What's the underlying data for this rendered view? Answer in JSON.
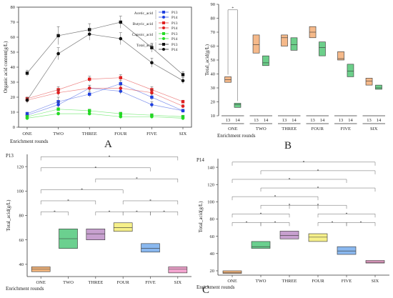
{
  "figure": {
    "panel_labels": [
      "A",
      "B",
      "C"
    ]
  },
  "chart_data": [
    {
      "id": "A",
      "type": "line",
      "categories": [
        "ONE",
        "TWO",
        "THREE",
        "FOUR",
        "FIVE",
        "SIX"
      ],
      "xlabel": "Enrichment rounds",
      "ylabel": "Organic acid content(g/L)",
      "ylim": [
        0,
        80
      ],
      "yticks": [
        0,
        10,
        20,
        30,
        40,
        50,
        60,
        70,
        80
      ],
      "legend_groups": [
        "Acetic_acid",
        "Butyric_acid",
        "Caproic_acid",
        "Total_acid"
      ],
      "series": [
        {
          "name": "P13",
          "group": "Acetic_acid",
          "color": "#1f3fe0",
          "marker": "square",
          "values": [
            9,
            17,
            22,
            29,
            20,
            11
          ]
        },
        {
          "name": "P14",
          "group": "Acetic_acid",
          "color": "#1f3fe0",
          "marker": "circle",
          "values": [
            8,
            15,
            26,
            24,
            15,
            11
          ]
        },
        {
          "name": "P13",
          "group": "Butyric_acid",
          "color": "#e02020",
          "marker": "square",
          "values": [
            19,
            25,
            32,
            33,
            25,
            17
          ]
        },
        {
          "name": "P14",
          "group": "Butyric_acid",
          "color": "#e02020",
          "marker": "circle",
          "values": [
            18,
            23,
            26,
            26,
            23,
            14
          ]
        },
        {
          "name": "P13",
          "group": "Caproic_acid",
          "color": "#22dd22",
          "marker": "square",
          "values": [
            7,
            12,
            11,
            9,
            8,
            7
          ]
        },
        {
          "name": "P14",
          "group": "Caproic_acid",
          "color": "#22dd22",
          "marker": "circle",
          "values": [
            6,
            9,
            9,
            7,
            7,
            6
          ]
        },
        {
          "name": "P13",
          "group": "Total_acid",
          "color": "#111111",
          "marker": "square",
          "values": [
            36,
            61,
            65,
            70,
            53,
            35
          ]
        },
        {
          "name": "P14",
          "group": "Total_acid",
          "color": "#111111",
          "marker": "circle",
          "values": [
            18,
            49,
            62,
            59,
            43,
            31
          ]
        }
      ],
      "errors": [
        [
          1,
          3,
          2,
          2,
          2,
          1
        ],
        [
          1,
          2,
          2,
          2,
          2,
          1
        ],
        [
          1,
          2,
          2,
          2,
          2,
          1
        ],
        [
          1,
          2,
          2,
          2,
          2,
          1
        ],
        [
          1,
          1,
          1,
          1,
          1,
          1
        ],
        [
          1,
          1,
          1,
          1,
          1,
          1
        ],
        [
          2,
          6,
          4,
          4,
          3,
          2
        ],
        [
          2,
          4,
          4,
          4,
          3,
          2
        ]
      ]
    },
    {
      "id": "B",
      "type": "box",
      "ylabel": "Total_acid(g/L)",
      "xlabel": "Enrichment rounds",
      "ylim": [
        10,
        90
      ],
      "yticks": [
        10,
        20,
        30,
        40,
        50,
        60,
        70,
        80,
        90
      ],
      "groups": [
        "ONE",
        "TWO",
        "THREE",
        "FOUR",
        "FIVE",
        "SIX"
      ],
      "sub_labels": [
        "13",
        "14"
      ],
      "colors": {
        "13": "#f5b98a",
        "14": "#6ccf8a"
      },
      "boxes": [
        {
          "group": "ONE",
          "sub": "13",
          "q1": 34,
          "median": 36,
          "q3": 38
        },
        {
          "group": "ONE",
          "sub": "14",
          "q1": 16,
          "median": 18,
          "q3": 19
        },
        {
          "group": "TWO",
          "sub": "13",
          "q1": 55,
          "median": 61,
          "q3": 68
        },
        {
          "group": "TWO",
          "sub": "14",
          "q1": 46,
          "median": 48,
          "q3": 53
        },
        {
          "group": "THREE",
          "sub": "13",
          "q1": 60,
          "median": 66,
          "q3": 68
        },
        {
          "group": "THREE",
          "sub": "14",
          "q1": 57,
          "median": 61,
          "q3": 66
        },
        {
          "group": "FOUR",
          "sub": "13",
          "q1": 66,
          "median": 70,
          "q3": 74
        },
        {
          "group": "FOUR",
          "sub": "14",
          "q1": 53,
          "median": 59,
          "q3": 63
        },
        {
          "group": "FIVE",
          "sub": "13",
          "q1": 50,
          "median": 51,
          "q3": 56
        },
        {
          "group": "FIVE",
          "sub": "14",
          "q1": 38,
          "median": 42,
          "q3": 47
        },
        {
          "group": "SIX",
          "sub": "13",
          "q1": 32,
          "median": 35,
          "q3": 37
        },
        {
          "group": "SIX",
          "sub": "14",
          "q1": 29,
          "median": 30,
          "q3": 32
        }
      ],
      "brackets": [
        {
          "group": "ONE",
          "level": 86
        }
      ]
    },
    {
      "id": "C-P13",
      "type": "box",
      "title": "P13",
      "ylabel": "Total_acid(g/L)",
      "xlabel": "Enrichment rounds",
      "ylim": [
        30,
        130
      ],
      "yticks": [
        40,
        60,
        80,
        100,
        120
      ],
      "categories": [
        "ONE",
        "TWO",
        "THREE",
        "FOUR",
        "FIVE",
        "SIX"
      ],
      "boxes": [
        {
          "q1": 34,
          "median": 36,
          "q3": 38,
          "color": "#f2b57c"
        },
        {
          "q1": 53,
          "median": 61,
          "q3": 69,
          "color": "#6bd08f"
        },
        {
          "q1": 60,
          "median": 65,
          "q3": 69,
          "color": "#c7a0cf"
        },
        {
          "q1": 67,
          "median": 70,
          "q3": 74,
          "color": "#f6f08a"
        },
        {
          "q1": 50,
          "median": 53,
          "q3": 57,
          "color": "#8ab8ef"
        },
        {
          "q1": 33,
          "median": 36,
          "q3": 38,
          "color": "#f2a5cf"
        }
      ],
      "brackets": [
        {
          "from": 0,
          "to": 1,
          "level": 83
        },
        {
          "from": 2,
          "to": 3,
          "level": 83
        },
        {
          "from": 3,
          "to": 4,
          "level": 83
        },
        {
          "from": 4,
          "to": 5,
          "level": 83
        },
        {
          "from": 0,
          "to": 2,
          "level": 92
        },
        {
          "from": 3,
          "to": 5,
          "level": 92
        },
        {
          "from": 0,
          "to": 3,
          "level": 101
        },
        {
          "from": 2,
          "to": 5,
          "level": 110
        },
        {
          "from": 0,
          "to": 4,
          "level": 119
        },
        {
          "from": 0,
          "to": 5,
          "level": 128
        }
      ]
    },
    {
      "id": "C-P14",
      "type": "box",
      "title": "P14",
      "ylabel": "Total_acid(g/L)",
      "xlabel": "Enrichment rounds",
      "ylim": [
        15,
        150
      ],
      "yticks": [
        20,
        40,
        60,
        80,
        100,
        120,
        140
      ],
      "categories": [
        "ONE",
        "TWO",
        "THREE",
        "FOUR",
        "FIVE",
        "SIX"
      ],
      "boxes": [
        {
          "q1": 17,
          "median": 18,
          "q3": 20,
          "color": "#f2b57c"
        },
        {
          "q1": 46,
          "median": 48,
          "q3": 54,
          "color": "#6bd08f"
        },
        {
          "q1": 57,
          "median": 61,
          "q3": 66,
          "color": "#c7a0cf"
        },
        {
          "q1": 54,
          "median": 59,
          "q3": 63,
          "color": "#f6f08a"
        },
        {
          "q1": 39,
          "median": 43,
          "q3": 48,
          "color": "#8ab8ef"
        },
        {
          "q1": 29,
          "median": 30,
          "q3": 32,
          "color": "#f2a5cf"
        }
      ],
      "brackets": [
        {
          "from": 0,
          "to": 1,
          "level": 76
        },
        {
          "from": 1,
          "to": 2,
          "level": 76
        },
        {
          "from": 3,
          "to": 4,
          "level": 76
        },
        {
          "from": 4,
          "to": 5,
          "level": 76
        },
        {
          "from": 0,
          "to": 2,
          "level": 86
        },
        {
          "from": 3,
          "to": 5,
          "level": 86
        },
        {
          "from": 1,
          "to": 3,
          "level": 96
        },
        {
          "from": 2,
          "to": 4,
          "level": 96
        },
        {
          "from": 0,
          "to": 3,
          "level": 106
        },
        {
          "from": 1,
          "to": 5,
          "level": 116
        },
        {
          "from": 0,
          "to": 4,
          "level": 126
        },
        {
          "from": 1,
          "to": 5,
          "level": 136
        },
        {
          "from": 0,
          "to": 5,
          "level": 146
        }
      ]
    }
  ]
}
